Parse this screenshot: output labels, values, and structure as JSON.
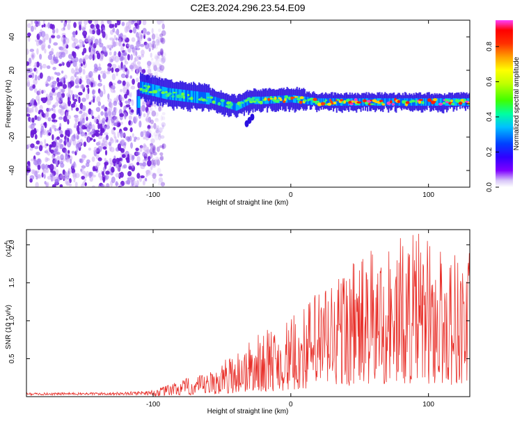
{
  "title": "C2E3.2024.296.23.54.E09",
  "colors": {
    "frame": "#000000",
    "snr_line": "#e8302a",
    "noise_purple": "#6a1bd8",
    "noise_light": "#c9a8f5"
  },
  "chart_data": [
    {
      "type": "heatmap",
      "xlabel": "Height of straight line (km)",
      "ylabel": "Frequency (Hz)",
      "xlim": [
        -192,
        130
      ],
      "ylim": [
        -50,
        50
      ],
      "x_ticks": [
        -100,
        0,
        100
      ],
      "y_ticks": [
        -40,
        -20,
        0,
        20,
        40
      ],
      "colorbar": {
        "label": "Normalized spectral amplitude",
        "range": [
          0,
          0.95
        ],
        "ticks": [
          0.0,
          0.2,
          0.4,
          0.6,
          0.8
        ],
        "colormap": [
          "#ffffff",
          "#d7c6f8",
          "#7f00ff",
          "#3000ff",
          "#0040ff",
          "#00c0ff",
          "#00ffa0",
          "#40ff00",
          "#c0ff00",
          "#ffff00",
          "#ffa000",
          "#ff3000",
          "#ff0000",
          "#ff40ff"
        ]
      },
      "features": {
        "noise_region_x": [
          -192,
          -102
        ],
        "signal_band": [
          {
            "x": -110,
            "freq": 10
          },
          {
            "x": -90,
            "freq": 6
          },
          {
            "x": -60,
            "freq": 3
          },
          {
            "x": -40,
            "freq": -2
          },
          {
            "x": -30,
            "freq": 2
          },
          {
            "x": -20,
            "freq": 2
          },
          {
            "x": 0,
            "freq": 3
          },
          {
            "x": 20,
            "freq": 1
          },
          {
            "x": 60,
            "freq": 1
          },
          {
            "x": 100,
            "freq": 1
          },
          {
            "x": 130,
            "freq": 1
          }
        ]
      }
    },
    {
      "type": "line",
      "xlabel": "Height of straight line (km)",
      "ylabel": "SNR (10 * v/v)",
      "y_scale_label": "(x10^4)",
      "xlim": [
        -192,
        130
      ],
      "ylim": [
        0,
        2.2
      ],
      "x_ticks": [
        -100,
        0,
        100
      ],
      "y_ticks": [
        0.5,
        1.0,
        1.5,
        2.0
      ],
      "y_tick_labels": [
        "0.5",
        "1.0",
        "1.5",
        "2.0"
      ],
      "envelope": [
        {
          "x": -192,
          "y": 0.04
        },
        {
          "x": -120,
          "y": 0.05
        },
        {
          "x": -100,
          "y": 0.08
        },
        {
          "x": -80,
          "y": 0.22
        },
        {
          "x": -60,
          "y": 0.3
        },
        {
          "x": -40,
          "y": 0.6
        },
        {
          "x": -20,
          "y": 0.85
        },
        {
          "x": 0,
          "y": 1.0
        },
        {
          "x": 20,
          "y": 1.4
        },
        {
          "x": 40,
          "y": 1.75
        },
        {
          "x": 60,
          "y": 1.9
        },
        {
          "x": 90,
          "y": 2.15
        },
        {
          "x": 110,
          "y": 1.95
        },
        {
          "x": 130,
          "y": 1.9
        }
      ]
    }
  ]
}
